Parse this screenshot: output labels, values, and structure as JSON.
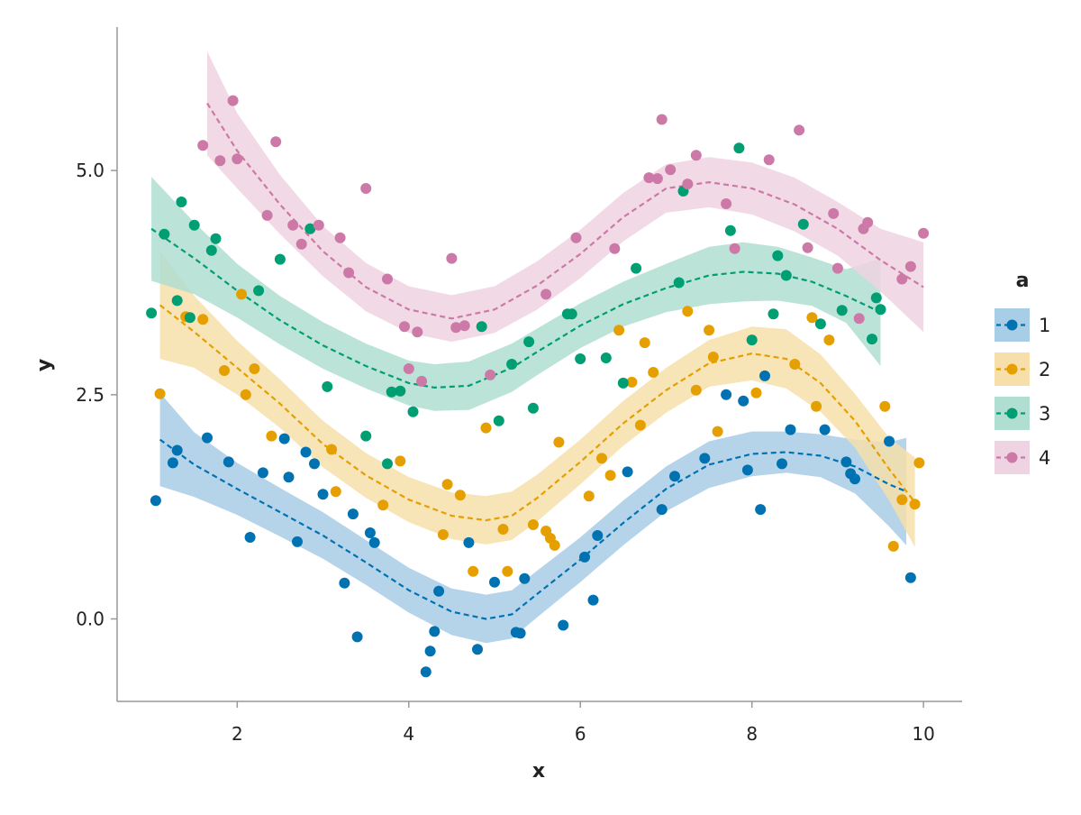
{
  "chart_data": {
    "type": "scatter",
    "xlabel": "x",
    "ylabel": "y",
    "xlim": [
      0.6,
      10.45
    ],
    "ylim": [
      -0.92,
      6.6
    ],
    "x_ticks": [
      2,
      4,
      6,
      8,
      10
    ],
    "x_tick_labels": [
      "2",
      "4",
      "6",
      "8",
      "10"
    ],
    "y_ticks": [
      0.0,
      2.5,
      5.0
    ],
    "y_tick_labels": [
      "0.0",
      "2.5",
      "5.0"
    ],
    "grid": false,
    "legend": {
      "title": "a",
      "placement": "right"
    },
    "series": [
      {
        "name": "1",
        "color": "#0072B2",
        "band_color": "#a8cde6",
        "points": [
          [
            1.05,
            1.32
          ],
          [
            1.25,
            1.74
          ],
          [
            1.3,
            1.88
          ],
          [
            1.65,
            2.02
          ],
          [
            1.9,
            1.75
          ],
          [
            2.15,
            0.91
          ],
          [
            2.3,
            1.63
          ],
          [
            2.55,
            2.01
          ],
          [
            2.6,
            1.58
          ],
          [
            2.7,
            0.86
          ],
          [
            2.8,
            1.86
          ],
          [
            2.9,
            1.73
          ],
          [
            3.0,
            1.39
          ],
          [
            3.25,
            0.4
          ],
          [
            3.35,
            1.17
          ],
          [
            3.4,
            -0.2
          ],
          [
            3.55,
            0.96
          ],
          [
            3.6,
            0.85
          ],
          [
            4.2,
            -0.59
          ],
          [
            4.25,
            -0.36
          ],
          [
            4.3,
            -0.14
          ],
          [
            4.35,
            0.31
          ],
          [
            4.7,
            0.85
          ],
          [
            4.8,
            -0.34
          ],
          [
            5.0,
            0.41
          ],
          [
            5.25,
            -0.15
          ],
          [
            5.3,
            -0.16
          ],
          [
            5.35,
            0.45
          ],
          [
            5.8,
            -0.07
          ],
          [
            6.05,
            0.69
          ],
          [
            6.15,
            0.21
          ],
          [
            6.2,
            0.93
          ],
          [
            6.55,
            1.64
          ],
          [
            6.95,
            1.22
          ],
          [
            7.1,
            1.59
          ],
          [
            7.45,
            1.79
          ],
          [
            7.7,
            2.5
          ],
          [
            7.9,
            2.43
          ],
          [
            7.95,
            1.66
          ],
          [
            8.1,
            1.22
          ],
          [
            8.15,
            2.71
          ],
          [
            8.35,
            1.73
          ],
          [
            8.45,
            2.11
          ],
          [
            8.85,
            2.11
          ],
          [
            9.1,
            1.75
          ],
          [
            9.15,
            1.62
          ],
          [
            9.2,
            1.56
          ],
          [
            9.6,
            1.98
          ],
          [
            9.85,
            0.46
          ]
        ],
        "fit": [
          [
            1.1,
            2.0
          ],
          [
            1.5,
            1.72
          ],
          [
            2.0,
            1.45
          ],
          [
            2.5,
            1.19
          ],
          [
            3.0,
            0.93
          ],
          [
            3.5,
            0.63
          ],
          [
            4.0,
            0.32
          ],
          [
            4.5,
            0.08
          ],
          [
            4.9,
            0.0
          ],
          [
            5.2,
            0.05
          ],
          [
            5.5,
            0.28
          ],
          [
            6.0,
            0.66
          ],
          [
            6.5,
            1.07
          ],
          [
            7.0,
            1.45
          ],
          [
            7.5,
            1.72
          ],
          [
            8.0,
            1.84
          ],
          [
            8.4,
            1.86
          ],
          [
            8.8,
            1.82
          ],
          [
            9.2,
            1.7
          ],
          [
            9.6,
            1.5
          ],
          [
            9.8,
            1.42
          ]
        ],
        "band_halfwidth": [
          0.52,
          0.36,
          0.29,
          0.27,
          0.26,
          0.25,
          0.25,
          0.26,
          0.27,
          0.27,
          0.26,
          0.25,
          0.25,
          0.25,
          0.26,
          0.25,
          0.23,
          0.24,
          0.3,
          0.47,
          0.6
        ]
      },
      {
        "name": "2",
        "color": "#E69F00",
        "band_color": "#f6dfaa",
        "points": [
          [
            1.1,
            2.51
          ],
          [
            1.4,
            3.37
          ],
          [
            1.6,
            3.34
          ],
          [
            1.85,
            2.77
          ],
          [
            2.05,
            3.62
          ],
          [
            2.1,
            2.5
          ],
          [
            2.2,
            2.79
          ],
          [
            2.4,
            2.04
          ],
          [
            3.1,
            1.89
          ],
          [
            3.15,
            1.42
          ],
          [
            3.7,
            1.27
          ],
          [
            3.9,
            1.76
          ],
          [
            4.4,
            0.94
          ],
          [
            4.45,
            1.5
          ],
          [
            4.6,
            1.38
          ],
          [
            4.75,
            0.53
          ],
          [
            4.9,
            2.13
          ],
          [
            5.1,
            1.0
          ],
          [
            5.15,
            0.53
          ],
          [
            5.45,
            1.05
          ],
          [
            5.6,
            0.98
          ],
          [
            5.65,
            0.9
          ],
          [
            5.7,
            0.82
          ],
          [
            5.75,
            1.97
          ],
          [
            6.1,
            1.37
          ],
          [
            6.25,
            1.79
          ],
          [
            6.35,
            1.6
          ],
          [
            6.45,
            3.22
          ],
          [
            6.6,
            2.64
          ],
          [
            6.7,
            2.16
          ],
          [
            6.75,
            3.08
          ],
          [
            6.85,
            2.75
          ],
          [
            7.25,
            3.43
          ],
          [
            7.35,
            2.55
          ],
          [
            7.5,
            3.22
          ],
          [
            7.55,
            2.92
          ],
          [
            7.6,
            2.09
          ],
          [
            8.05,
            2.52
          ],
          [
            8.5,
            2.84
          ],
          [
            8.7,
            3.36
          ],
          [
            8.75,
            2.37
          ],
          [
            8.9,
            3.11
          ],
          [
            9.55,
            2.37
          ],
          [
            9.65,
            0.81
          ],
          [
            9.75,
            1.33
          ],
          [
            9.9,
            1.28
          ],
          [
            9.95,
            1.74
          ]
        ],
        "fit": [
          [
            1.1,
            3.5
          ],
          [
            1.5,
            3.2
          ],
          [
            2.0,
            2.8
          ],
          [
            2.5,
            2.4
          ],
          [
            3.0,
            1.95
          ],
          [
            3.5,
            1.6
          ],
          [
            4.0,
            1.33
          ],
          [
            4.5,
            1.15
          ],
          [
            4.9,
            1.1
          ],
          [
            5.2,
            1.15
          ],
          [
            5.5,
            1.35
          ],
          [
            6.0,
            1.75
          ],
          [
            6.5,
            2.18
          ],
          [
            7.0,
            2.55
          ],
          [
            7.5,
            2.85
          ],
          [
            8.0,
            2.96
          ],
          [
            8.4,
            2.9
          ],
          [
            8.8,
            2.63
          ],
          [
            9.2,
            2.21
          ],
          [
            9.6,
            1.67
          ],
          [
            9.9,
            1.3
          ]
        ],
        "band_halfwidth": [
          0.6,
          0.4,
          0.3,
          0.27,
          0.26,
          0.25,
          0.25,
          0.26,
          0.27,
          0.27,
          0.26,
          0.25,
          0.25,
          0.25,
          0.26,
          0.3,
          0.33,
          0.32,
          0.3,
          0.35,
          0.5
        ]
      },
      {
        "name": "3",
        "color": "#009E73",
        "band_color": "#b0ded0",
        "points": [
          [
            1.0,
            3.41
          ],
          [
            1.15,
            4.29
          ],
          [
            1.3,
            3.55
          ],
          [
            1.35,
            4.65
          ],
          [
            1.45,
            3.36
          ],
          [
            1.5,
            4.39
          ],
          [
            1.7,
            4.11
          ],
          [
            1.75,
            4.24
          ],
          [
            2.25,
            3.66
          ],
          [
            2.5,
            4.01
          ],
          [
            2.85,
            4.35
          ],
          [
            3.05,
            2.59
          ],
          [
            3.5,
            2.04
          ],
          [
            3.75,
            1.73
          ],
          [
            3.8,
            2.53
          ],
          [
            3.9,
            2.54
          ],
          [
            4.05,
            2.31
          ],
          [
            4.85,
            3.26
          ],
          [
            5.05,
            2.21
          ],
          [
            5.2,
            2.84
          ],
          [
            5.4,
            3.09
          ],
          [
            5.45,
            2.35
          ],
          [
            5.85,
            3.4
          ],
          [
            5.9,
            3.4
          ],
          [
            6.0,
            2.9
          ],
          [
            6.3,
            2.91
          ],
          [
            6.5,
            2.63
          ],
          [
            6.65,
            3.91
          ],
          [
            7.15,
            3.75
          ],
          [
            7.2,
            4.77
          ],
          [
            7.75,
            4.33
          ],
          [
            7.85,
            5.25
          ],
          [
            8.0,
            3.11
          ],
          [
            8.25,
            3.4
          ],
          [
            8.3,
            4.05
          ],
          [
            8.4,
            3.83
          ],
          [
            8.6,
            4.4
          ],
          [
            8.8,
            3.29
          ],
          [
            9.05,
            3.44
          ],
          [
            9.4,
            3.12
          ],
          [
            9.45,
            3.58
          ],
          [
            9.5,
            3.45
          ]
        ],
        "fit": [
          [
            1.0,
            4.35
          ],
          [
            1.5,
            4.02
          ],
          [
            2.0,
            3.66
          ],
          [
            2.5,
            3.33
          ],
          [
            3.0,
            3.05
          ],
          [
            3.5,
            2.82
          ],
          [
            4.0,
            2.63
          ],
          [
            4.3,
            2.58
          ],
          [
            4.7,
            2.6
          ],
          [
            5.2,
            2.8
          ],
          [
            5.5,
            2.98
          ],
          [
            6.0,
            3.27
          ],
          [
            6.5,
            3.51
          ],
          [
            7.0,
            3.69
          ],
          [
            7.5,
            3.83
          ],
          [
            7.9,
            3.87
          ],
          [
            8.3,
            3.85
          ],
          [
            8.7,
            3.76
          ],
          [
            9.1,
            3.6
          ],
          [
            9.5,
            3.42
          ]
        ],
        "band_halfwidth": [
          0.58,
          0.4,
          0.3,
          0.27,
          0.26,
          0.25,
          0.25,
          0.26,
          0.27,
          0.27,
          0.26,
          0.25,
          0.25,
          0.27,
          0.32,
          0.33,
          0.3,
          0.27,
          0.3,
          0.6
        ]
      },
      {
        "name": "4",
        "color": "#CC79A7",
        "band_color": "#eed3e2",
        "points": [
          [
            1.6,
            5.28
          ],
          [
            1.8,
            5.11
          ],
          [
            1.95,
            5.78
          ],
          [
            2.0,
            5.13
          ],
          [
            2.35,
            4.5
          ],
          [
            2.45,
            5.32
          ],
          [
            2.65,
            4.39
          ],
          [
            2.75,
            4.18
          ],
          [
            2.95,
            4.39
          ],
          [
            3.2,
            4.25
          ],
          [
            3.3,
            3.86
          ],
          [
            3.5,
            4.8
          ],
          [
            3.75,
            3.79
          ],
          [
            3.95,
            3.26
          ],
          [
            4.0,
            2.79
          ],
          [
            4.1,
            3.2
          ],
          [
            4.15,
            2.65
          ],
          [
            4.5,
            4.02
          ],
          [
            4.55,
            3.25
          ],
          [
            4.65,
            3.27
          ],
          [
            4.95,
            2.72
          ],
          [
            5.6,
            3.62
          ],
          [
            5.95,
            4.25
          ],
          [
            6.4,
            4.13
          ],
          [
            6.8,
            4.92
          ],
          [
            6.9,
            4.91
          ],
          [
            6.95,
            5.57
          ],
          [
            7.05,
            5.01
          ],
          [
            7.25,
            4.85
          ],
          [
            7.35,
            5.17
          ],
          [
            7.7,
            4.63
          ],
          [
            7.8,
            4.13
          ],
          [
            8.2,
            5.12
          ],
          [
            8.55,
            5.45
          ],
          [
            8.65,
            4.14
          ],
          [
            8.95,
            4.52
          ],
          [
            9.0,
            3.91
          ],
          [
            9.25,
            3.35
          ],
          [
            9.3,
            4.35
          ],
          [
            9.35,
            4.42
          ],
          [
            9.75,
            3.79
          ],
          [
            9.85,
            3.93
          ],
          [
            10.0,
            4.3
          ]
        ],
        "fit": [
          [
            1.65,
            5.75
          ],
          [
            2.0,
            5.22
          ],
          [
            2.5,
            4.62
          ],
          [
            3.0,
            4.1
          ],
          [
            3.5,
            3.7
          ],
          [
            4.0,
            3.45
          ],
          [
            4.5,
            3.35
          ],
          [
            5.0,
            3.45
          ],
          [
            5.5,
            3.72
          ],
          [
            6.0,
            4.07
          ],
          [
            6.5,
            4.48
          ],
          [
            7.0,
            4.8
          ],
          [
            7.5,
            4.87
          ],
          [
            8.0,
            4.8
          ],
          [
            8.5,
            4.62
          ],
          [
            9.0,
            4.35
          ],
          [
            9.5,
            4.0
          ],
          [
            10.0,
            3.7
          ]
        ],
        "band_halfwidth": [
          0.58,
          0.42,
          0.33,
          0.28,
          0.27,
          0.26,
          0.26,
          0.26,
          0.27,
          0.27,
          0.27,
          0.27,
          0.28,
          0.29,
          0.3,
          0.3,
          0.35,
          0.5
        ]
      }
    ]
  }
}
